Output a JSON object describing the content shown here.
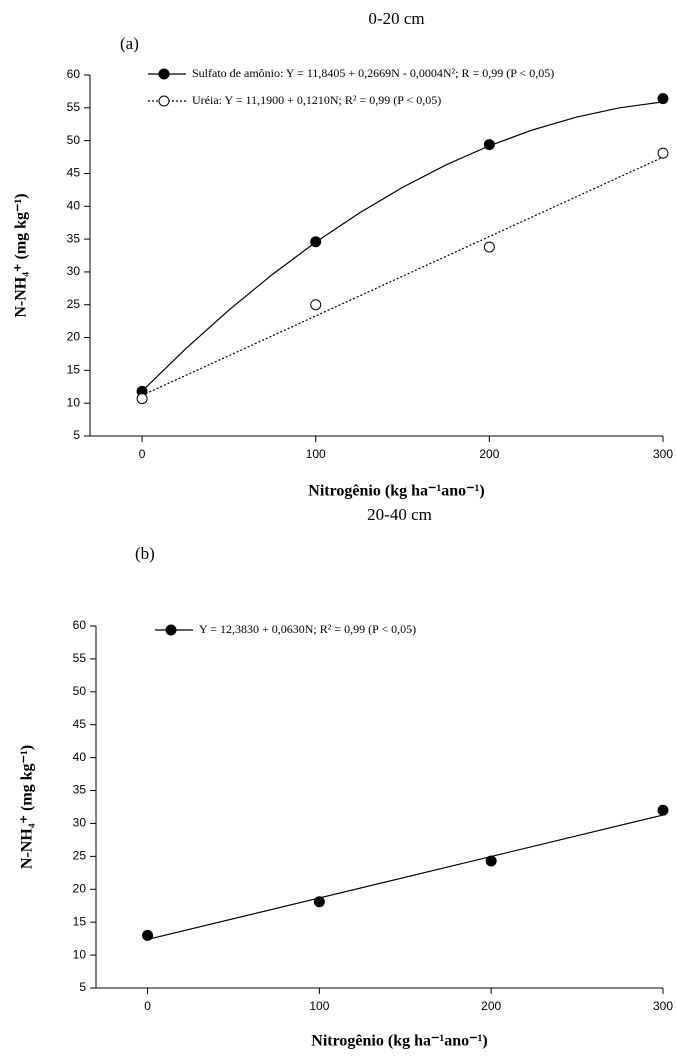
{
  "chart_data": [
    {
      "type": "scatter",
      "title": "0-20 cm",
      "panel_label": "(a)",
      "x_label": "Nitrogênio (kg ha⁻¹ano⁻¹)",
      "y_label": "N-NH₄⁺ (mg kg⁻¹)",
      "x": [
        0,
        100,
        200,
        300
      ],
      "series": [
        {
          "name": "Sulfato de amônio: Y = 11,8405 + 0,2669N - 0,0004N²; R = 0,99 (P < 0,05)",
          "color": "#000000",
          "marker": "filled",
          "dashed": false,
          "values": [
            11.8,
            34.6,
            49.4,
            56.4
          ],
          "fit_x": [
            0,
            25,
            50,
            75,
            100,
            125,
            150,
            175,
            200,
            225,
            250,
            275,
            300
          ],
          "fit_values": [
            11.84,
            18.26,
            24.19,
            29.61,
            34.53,
            38.95,
            42.88,
            46.3,
            49.22,
            51.64,
            53.57,
            55.0,
            55.91
          ]
        },
        {
          "name": "Uréia: Y = 11,1900  + 0,1210N; R² = 0,99 (P < 0,05)",
          "color": "#000000",
          "marker": "open",
          "dashed": true,
          "values": [
            10.7,
            25.0,
            33.8,
            48.1
          ],
          "fit_x": [
            0,
            300
          ],
          "fit_values": [
            11.19,
            47.49
          ]
        }
      ],
      "xlim": [
        -30,
        300
      ],
      "xticks": [
        0,
        100,
        200,
        300
      ],
      "ylim": [
        5,
        60
      ],
      "yticks": [
        5,
        10,
        15,
        20,
        25,
        30,
        35,
        40,
        45,
        50,
        55,
        60
      ]
    },
    {
      "type": "scatter",
      "title": "20-40 cm",
      "panel_label": "(b)",
      "x_label": "Nitrogênio (kg ha⁻¹ano⁻¹)",
      "y_label": "N-NH₄⁺ (mg kg⁻¹)",
      "x": [
        0,
        100,
        200,
        300
      ],
      "series": [
        {
          "name": "Y = 12,3830 + 0,0630N; R² = 0,99 (P < 0,05)",
          "color": "#000000",
          "marker": "filled",
          "dashed": false,
          "values": [
            13.0,
            18.1,
            24.3,
            32.0
          ],
          "fit_x": [
            0,
            300
          ],
          "fit_values": [
            12.38,
            31.28
          ]
        }
      ],
      "xlim": [
        -30,
        300
      ],
      "xticks": [
        0,
        100,
        200,
        300
      ],
      "ylim": [
        5,
        60
      ],
      "yticks": [
        5,
        10,
        15,
        20,
        25,
        30,
        35,
        40,
        45,
        50,
        55,
        60
      ]
    }
  ]
}
